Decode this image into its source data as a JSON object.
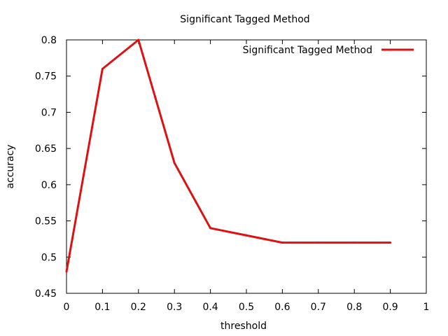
{
  "chart_data": {
    "type": "line",
    "title": "Significant Tagged Method",
    "xlabel": "threshold",
    "ylabel": "accuracy",
    "xlim": [
      0,
      1
    ],
    "ylim": [
      0.45,
      0.8
    ],
    "x_ticks": [
      "0",
      "0.1",
      "0.2",
      "0.3",
      "0.4",
      "0.5",
      "0.6",
      "0.7",
      "0.8",
      "0.9",
      "1"
    ],
    "y_ticks": [
      "0.45",
      "0.5",
      "0.55",
      "0.6",
      "0.65",
      "0.7",
      "0.75",
      "0.8"
    ],
    "grid": false,
    "legend_position": "top-right",
    "series": [
      {
        "name": "Significant Tagged Method",
        "color": "#dd1111",
        "x": [
          0,
          0.1,
          0.2,
          0.3,
          0.4,
          0.5,
          0.6,
          0.7,
          0.8,
          0.9
        ],
        "y": [
          0.48,
          0.76,
          0.8,
          0.63,
          0.54,
          0.53,
          0.52,
          0.52,
          0.52,
          0.52
        ]
      }
    ]
  }
}
